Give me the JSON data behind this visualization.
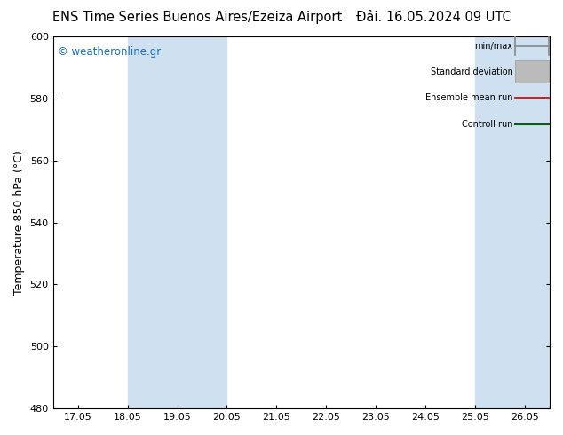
{
  "title_left": "ENS Time Series Buenos Aires/Ezeiza Airport",
  "title_right": "Đải. 16.05.2024 09 UTC",
  "ylabel": "Temperature 850 hPa (°C)",
  "ylim": [
    480,
    600
  ],
  "yticks": [
    480,
    500,
    520,
    540,
    560,
    580,
    600
  ],
  "xtick_labels": [
    "17.05",
    "18.05",
    "19.05",
    "20.05",
    "21.05",
    "22.05",
    "23.05",
    "24.05",
    "25.05",
    "26.05"
  ],
  "xtick_positions": [
    0,
    1,
    2,
    3,
    4,
    5,
    6,
    7,
    8,
    9
  ],
  "xlim": [
    -0.5,
    9.5
  ],
  "watermark": "© weatheronline.gr",
  "watermark_color": "#1a6fc4",
  "bg_color": "#ffffff",
  "plot_bg_color": "#ffffff",
  "shaded_bands": [
    {
      "xmin": 1,
      "xmax": 2,
      "color": "#cfe0f0"
    },
    {
      "xmin": 2,
      "xmax": 3,
      "color": "#cfe0f0"
    },
    {
      "xmin": 8,
      "xmax": 9,
      "color": "#cfe0f0"
    },
    {
      "xmin": 9,
      "xmax": 9.5,
      "color": "#cfe0f0"
    }
  ],
  "legend_entries": [
    {
      "label": "min/max",
      "color": "#888888",
      "lw": 1.2,
      "style": "minmax"
    },
    {
      "label": "Standard deviation",
      "color": "#bbbbbb",
      "lw": 6,
      "style": "thick"
    },
    {
      "label": "Ensemble mean run",
      "color": "#cc0000",
      "lw": 1.2,
      "style": "line"
    },
    {
      "label": "Controll run",
      "color": "#006600",
      "lw": 1.5,
      "style": "line"
    }
  ],
  "title_fontsize": 10.5,
  "axis_label_fontsize": 9,
  "tick_fontsize": 8,
  "legend_fontsize": 7,
  "watermark_fontsize": 8.5
}
